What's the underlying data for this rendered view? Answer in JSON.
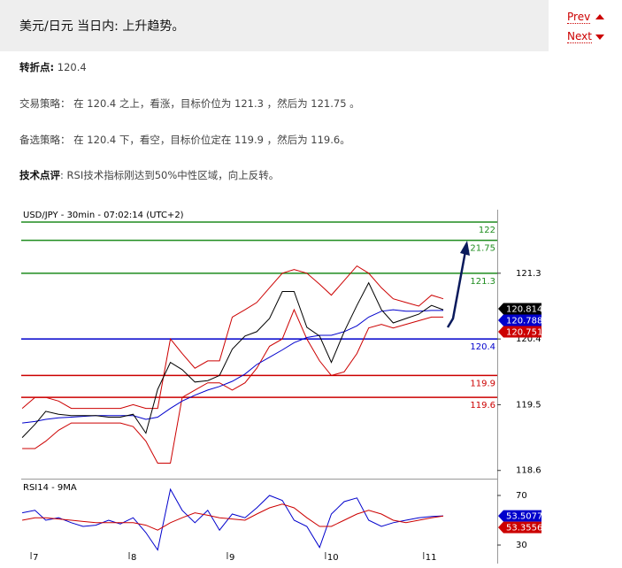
{
  "header": {
    "title": "美元/日元 当日内: 上升趋势。",
    "prev": "Prev",
    "next": "Next"
  },
  "article": {
    "pivot": {
      "label": "转折点:",
      "text": "120.4"
    },
    "strategy": "交易策略： 在 120.4 之上，看涨，目标价位为 121.3 ，然后为 121.75 。",
    "alternative": "备选策略： 在 120.4 下，看空，目标价位定在 119.9 ，然后为 119.6。",
    "comment": {
      "label": "技术点评",
      "text": ": RSI技术指标刚达到50%中性区域，向上反转。"
    }
  },
  "chart_data": [
    {
      "type": "line",
      "title": "USD/JPY - 30min - 07:02:14 (UTC+2)",
      "x": [
        6.91,
        7.04,
        7.15,
        7.28,
        7.41,
        7.53,
        7.66,
        7.79,
        7.91,
        8.04,
        8.17,
        8.29,
        8.42,
        8.54,
        8.67,
        8.8,
        8.92,
        9.05,
        9.18,
        9.3,
        9.43,
        9.56,
        9.68,
        9.81,
        9.94,
        10.06,
        10.19,
        10.32,
        10.44,
        10.57,
        10.69,
        10.82,
        10.95,
        11.08,
        11.2
      ],
      "xlim": [
        6.9,
        11.75
      ],
      "xticks": [
        7,
        8,
        9,
        10,
        11
      ],
      "ylim": [
        118.5,
        122.17
      ],
      "yticks": [
        118.6,
        119.5,
        120.4,
        121.3
      ],
      "series": [
        {
          "color": "#cc0000",
          "values": [
            119.45,
            119.6,
            119.6,
            119.55,
            119.45,
            119.45,
            119.45,
            119.45,
            119.45,
            119.5,
            119.45,
            119.45,
            120.4,
            120.2,
            120.0,
            120.1,
            120.1,
            120.7,
            120.8,
            120.9,
            121.1,
            121.3,
            121.35,
            121.3,
            121.15,
            121.0,
            121.2,
            121.4,
            121.3,
            121.1,
            120.95,
            120.9,
            120.85,
            121.0,
            120.95
          ]
        },
        {
          "color": "#cc0000",
          "values": [
            118.9,
            118.9,
            119.0,
            119.15,
            119.25,
            119.25,
            119.25,
            119.25,
            119.25,
            119.2,
            119.0,
            118.7,
            118.7,
            119.6,
            119.7,
            119.8,
            119.8,
            119.7,
            119.8,
            120.0,
            120.3,
            120.4,
            120.8,
            120.4,
            120.1,
            119.9,
            119.95,
            120.2,
            120.55,
            120.6,
            120.55,
            120.6,
            120.65,
            120.7,
            120.7
          ]
        },
        {
          "color": "#0000cc",
          "values": [
            119.25,
            119.27,
            119.3,
            119.32,
            119.33,
            119.34,
            119.35,
            119.35,
            119.35,
            119.35,
            119.3,
            119.33,
            119.45,
            119.55,
            119.63,
            119.7,
            119.75,
            119.82,
            119.92,
            120.05,
            120.15,
            120.25,
            120.35,
            120.42,
            120.45,
            120.45,
            120.5,
            120.58,
            120.7,
            120.78,
            120.8,
            120.78,
            120.78,
            120.79,
            120.79
          ]
        },
        {
          "color": "#000000",
          "values": [
            119.05,
            119.23,
            119.41,
            119.37,
            119.35,
            119.35,
            119.35,
            119.33,
            119.33,
            119.37,
            119.11,
            119.71,
            120.08,
            119.98,
            119.81,
            119.83,
            119.9,
            120.26,
            120.44,
            120.5,
            120.68,
            121.05,
            121.05,
            120.56,
            120.44,
            120.08,
            120.5,
            120.86,
            121.17,
            120.8,
            120.62,
            120.68,
            120.74,
            120.86,
            120.8
          ]
        }
      ],
      "levels": [
        {
          "value": 122,
          "color": "#1e8c1e"
        },
        {
          "value": 121.75,
          "color": "#1e8c1e"
        },
        {
          "value": 121.3,
          "color": "#1e8c1e"
        },
        {
          "value": 120.4,
          "color": "#0000cc"
        },
        {
          "value": 119.9,
          "color": "#cc0000"
        },
        {
          "value": 119.6,
          "color": "#cc0000"
        }
      ],
      "tags": [
        {
          "value": 120.814,
          "color": "#000000"
        },
        {
          "value": 120.788,
          "color": "#0000cc"
        },
        {
          "value": 120.751,
          "color": "#cc0000"
        }
      ]
    },
    {
      "type": "line",
      "title": "RSI14 - 9MA",
      "ylim": [
        18.6,
        80.7
      ],
      "yticks": [
        30,
        70
      ],
      "series": [
        {
          "color": "#0000cc",
          "values": [
            56,
            58,
            50,
            52,
            48,
            45,
            46,
            50,
            47,
            52,
            40,
            26,
            75,
            58,
            48,
            58,
            42,
            55,
            52,
            60,
            70,
            66,
            50,
            45,
            28,
            55,
            65,
            68,
            50,
            45,
            48,
            50,
            52,
            53,
            53.5
          ]
        },
        {
          "color": "#cc0000",
          "values": [
            50,
            52,
            52,
            51,
            50,
            49,
            48,
            48,
            48,
            48,
            46,
            42,
            48,
            52,
            56,
            54,
            52,
            51,
            50,
            55,
            60,
            63,
            60,
            52,
            45,
            45,
            50,
            55,
            58,
            55,
            50,
            48,
            50,
            52,
            53.4
          ]
        }
      ],
      "tags": [
        {
          "value": 53.5077,
          "color": "#0000cc"
        },
        {
          "value": 53.3556,
          "color": "#cc0000"
        }
      ]
    }
  ]
}
